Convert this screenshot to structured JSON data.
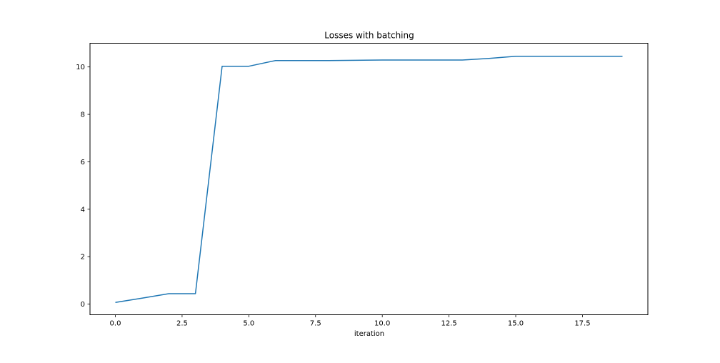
{
  "chart_data": {
    "type": "line",
    "title": "Losses with batching",
    "xlabel": "iteration",
    "ylabel": "",
    "xlim": [
      -0.95,
      19.95
    ],
    "ylim": [
      -0.45,
      11.0
    ],
    "xticks": [
      0.0,
      2.5,
      5.0,
      7.5,
      10.0,
      12.5,
      15.0,
      17.5
    ],
    "xtick_labels": [
      "0.0",
      "2.5",
      "5.0",
      "7.5",
      "10.0",
      "12.5",
      "15.0",
      "17.5"
    ],
    "yticks": [
      0,
      2,
      4,
      6,
      8,
      10
    ],
    "ytick_labels": [
      "0",
      "2",
      "4",
      "6",
      "8",
      "10"
    ],
    "grid": false,
    "series": [
      {
        "color": "#1f77b4",
        "x": [
          0,
          1,
          2,
          3,
          4,
          5,
          6,
          7,
          8,
          9,
          10,
          11,
          12,
          13,
          14,
          15,
          16,
          17,
          18,
          19
        ],
        "values": [
          0.07,
          0.25,
          0.44,
          0.44,
          10.03,
          10.03,
          10.27,
          10.27,
          10.27,
          10.28,
          10.29,
          10.29,
          10.29,
          10.29,
          10.36,
          10.45,
          10.45,
          10.45,
          10.45,
          10.45
        ]
      }
    ]
  }
}
